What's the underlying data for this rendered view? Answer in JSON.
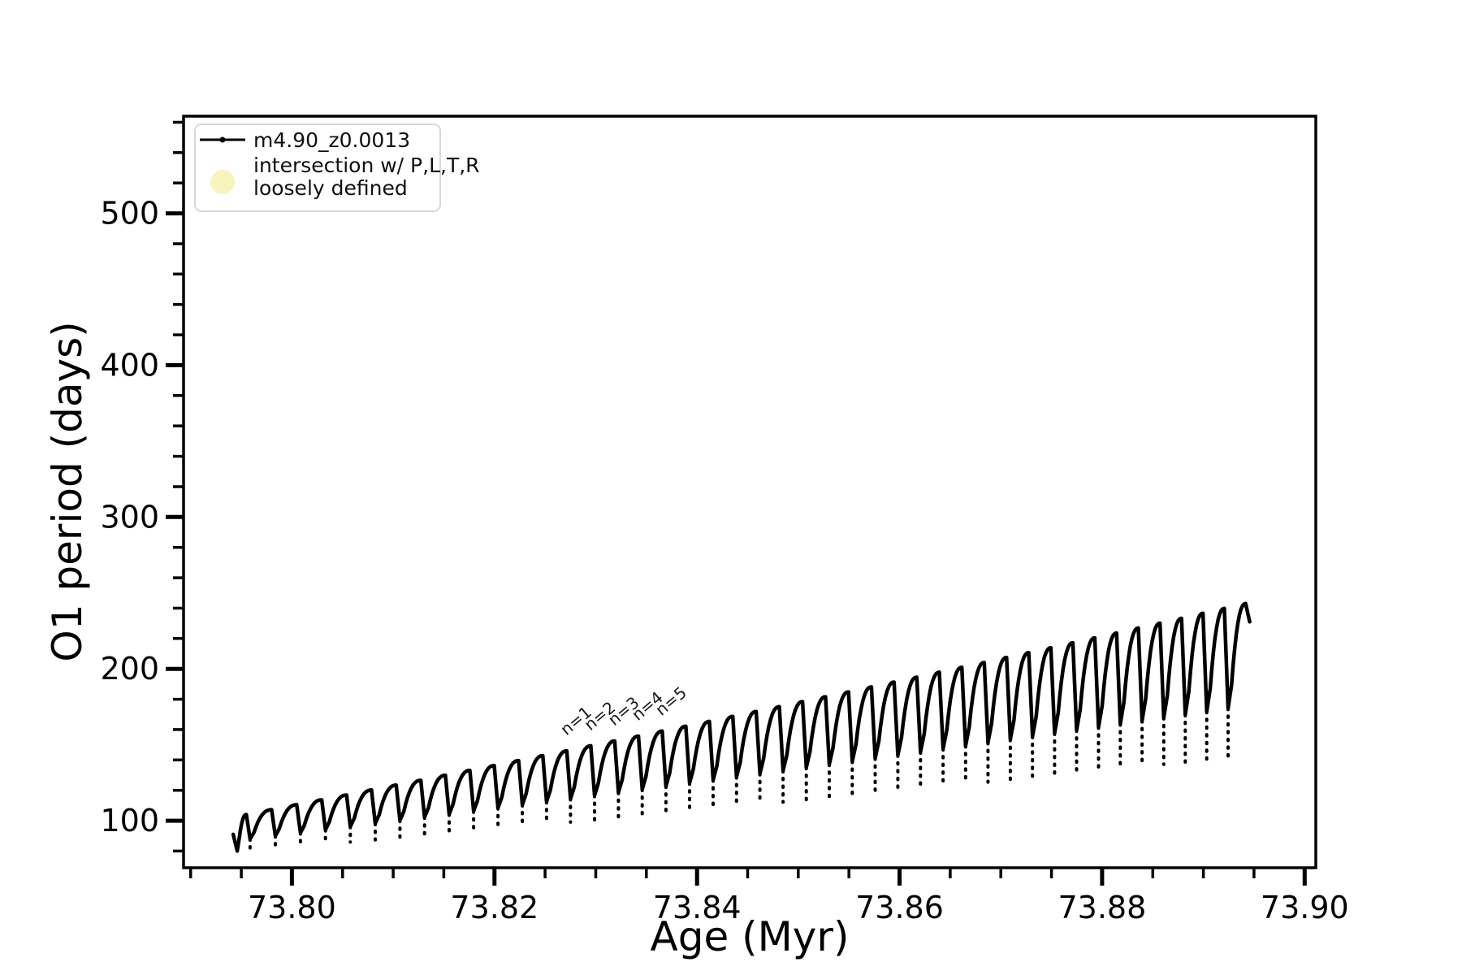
{
  "figure": {
    "background": "#ffffff"
  },
  "chart_data": {
    "type": "line",
    "title": "",
    "xlabel": "Age (Myr)",
    "ylabel": "O1 period (days)",
    "xlim": [
      73.7893,
      73.9011
    ],
    "ylim": [
      69,
      564
    ],
    "grid": false,
    "x_major_ticks": [
      73.8,
      73.82,
      73.84,
      73.86,
      73.88,
      73.9
    ],
    "x_major_tick_labels": [
      "73.80",
      "73.82",
      "73.84",
      "73.86",
      "73.88",
      "73.90"
    ],
    "x_minor_tick_interval": 0.005,
    "y_major_ticks": [
      100,
      200,
      300,
      400,
      500
    ],
    "y_major_tick_labels": [
      "100",
      "200",
      "300",
      "400",
      "500"
    ],
    "y_minor_tick_interval": 20,
    "series": [
      {
        "name": "m4.90_z0.0013",
        "color": "#000000",
        "style": "line-with-point-markers",
        "start_point": {
          "age": 73.7942,
          "value": 91
        },
        "start_dip_value": 80,
        "end_point": {
          "age": 73.8952,
          "value": 231
        },
        "peak_ages": [
          73.7955,
          73.79799,
          73.80047,
          73.80294,
          73.8054,
          73.80786,
          73.8103,
          73.81273,
          73.81516,
          73.81757,
          73.81998,
          73.82238,
          73.82477,
          73.82714,
          73.82951,
          73.83187,
          73.83422,
          73.83656,
          73.8389,
          73.84122,
          73.84353,
          73.84584,
          73.84813,
          73.85042,
          73.85269,
          73.85496,
          73.85722,
          73.85946,
          73.8617,
          73.86393,
          73.86615,
          73.86836,
          73.87057,
          73.87276,
          73.87494,
          73.87711,
          73.87928,
          73.88143,
          73.88358,
          73.88572,
          73.88784,
          73.88996,
          73.89207,
          73.89417
        ],
        "peak_values_days": [
          104.0,
          107.2,
          110.5,
          113.7,
          116.9,
          120.2,
          123.4,
          126.6,
          129.9,
          133.1,
          136.3,
          139.6,
          142.8,
          146.0,
          149.3,
          152.5,
          155.7,
          159.0,
          162.2,
          165.4,
          168.7,
          171.9,
          175.1,
          178.4,
          181.6,
          184.8,
          188.1,
          191.3,
          194.5,
          197.8,
          201.0,
          204.2,
          207.5,
          210.7,
          213.9,
          217.2,
          220.4,
          223.6,
          226.9,
          230.1,
          233.3,
          236.6,
          239.8,
          243.0
        ],
        "dip_values_days": [
          80.0,
          81.5,
          82.9,
          84.4,
          85.9,
          87.3,
          88.8,
          90.3,
          91.7,
          93.2,
          94.7,
          96.1,
          97.6,
          99.0,
          100.5,
          102.0,
          103.4,
          104.9,
          106.4,
          107.8,
          109.3,
          110.8,
          112.2,
          113.7,
          115.2,
          116.6,
          118.1,
          119.5,
          121.0,
          122.5,
          123.9,
          125.4,
          126.9,
          128.3,
          129.8,
          131.3,
          132.7,
          134.2,
          135.7,
          137.1,
          138.6,
          140.0,
          141.5,
          143.0
        ]
      }
    ],
    "annotations": [
      {
        "text": "n=1",
        "peak_index": 14
      },
      {
        "text": "n=2",
        "peak_index": 15
      },
      {
        "text": "n=3",
        "peak_index": 16
      },
      {
        "text": "n=4",
        "peak_index": 17
      },
      {
        "text": "n=5",
        "peak_index": 18
      }
    ],
    "legend": {
      "position": "upper left",
      "border_color": "#d8d8d8",
      "entries": [
        {
          "label": "m4.90_z0.0013",
          "marker": "line-dot",
          "color": "#000000"
        },
        {
          "label_line1": "intersection w/ P,L,T,R",
          "label_line2": "loosely defined",
          "marker": "circle",
          "color": "#f7f4bd"
        }
      ]
    }
  }
}
